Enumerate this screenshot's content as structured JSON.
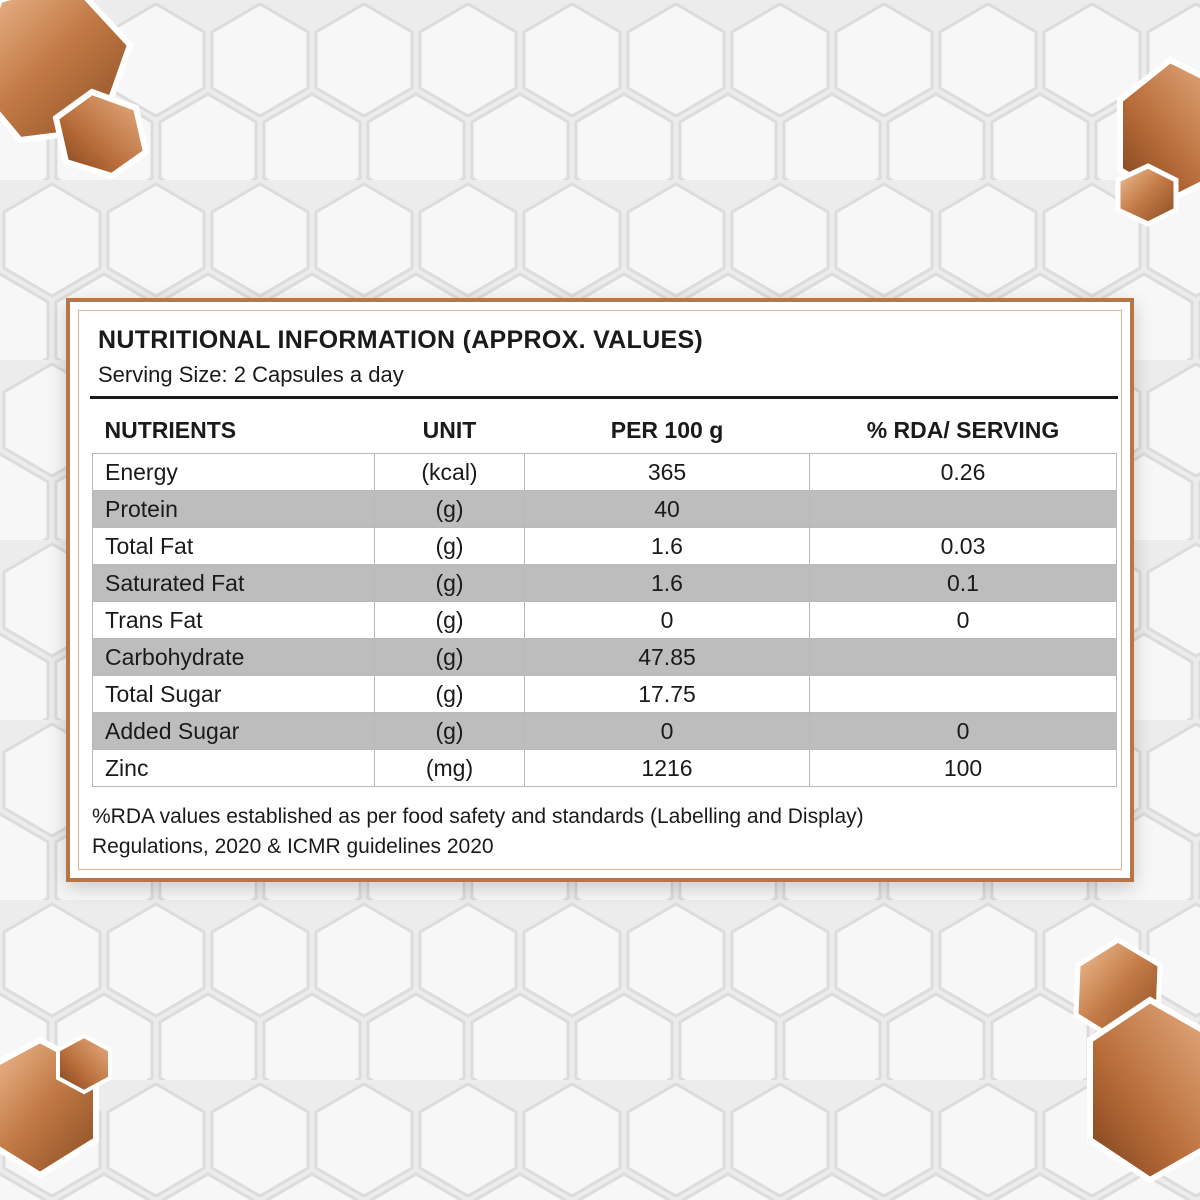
{
  "colors": {
    "accent": "#b87647",
    "row_shade": "#bdbdbd",
    "background": "#eeeeee"
  },
  "panel": {
    "title": "NUTRITIONAL INFORMATION (APPROX. VALUES)",
    "subtitle": "Serving Size: 2 Capsules a day",
    "headers": [
      "NUTRIENTS",
      "UNIT",
      "PER 100 g",
      "% RDA/ SERVING"
    ],
    "rows": [
      [
        "Energy",
        "(kcal)",
        "365",
        "0.26"
      ],
      [
        "Protein",
        "(g)",
        "40",
        ""
      ],
      [
        "Total Fat",
        "(g)",
        "1.6",
        "0.03"
      ],
      [
        "Saturated Fat",
        "(g)",
        "1.6",
        "0.1"
      ],
      [
        "Trans Fat",
        "(g)",
        "0",
        "0"
      ],
      [
        "Carbohydrate",
        "(g)",
        "47.85",
        ""
      ],
      [
        "Total Sugar",
        "(g)",
        "17.75",
        ""
      ],
      [
        "Added Sugar",
        "(g)",
        "0",
        "0"
      ],
      [
        "Zinc",
        "(mg)",
        "1216",
        "100"
      ]
    ],
    "footnote_line1": "%RDA values established as per food safety and standards (Labelling and Display)",
    "footnote_line2": "Regulations, 2020 & ICMR guidelines 2020"
  }
}
